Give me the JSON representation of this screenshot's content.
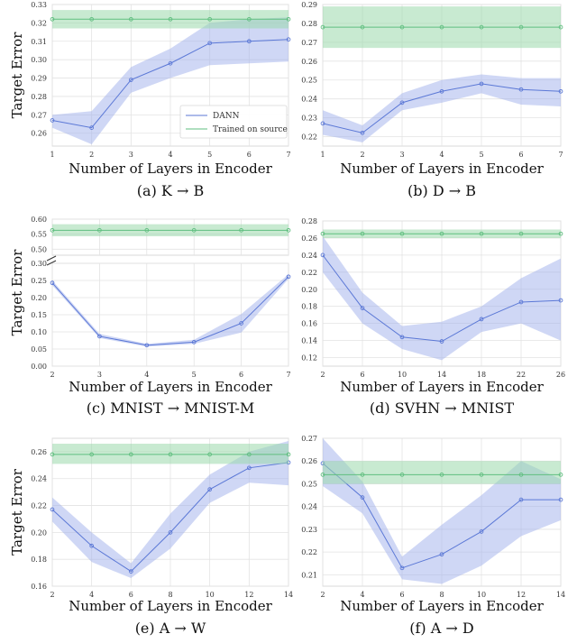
{
  "colors": {
    "dann": "#5b78d6",
    "dann_band": "#9fb0ec",
    "source": "#5fbf7f",
    "source_band": "#9bd8ac",
    "grid": "#e3e3e3",
    "frame": "#cfcfcf"
  },
  "chart_data": [
    {
      "type": "line",
      "caption": "(a) K → B",
      "xlabel": "Number of Layers in Encoder",
      "ylabel": "Target Error",
      "x": [
        1,
        2,
        3,
        4,
        5,
        6,
        7
      ],
      "xticks": [
        "1",
        "2",
        "3",
        "4",
        "5",
        "6",
        "7"
      ],
      "xlim": [
        1,
        7
      ],
      "ylim": [
        0.253,
        0.33
      ],
      "yticks": [
        0.26,
        0.27,
        0.28,
        0.29,
        0.3,
        0.31,
        0.32,
        0.33
      ],
      "yticklabels": [
        "0.26",
        "0.27",
        "0.28",
        "0.29",
        "0.30",
        "0.31",
        "0.32",
        "0.33"
      ],
      "grid": true,
      "legend": {
        "position": "lower-right",
        "entries": [
          "DANN",
          "Trained on source"
        ]
      },
      "series": [
        {
          "name": "DANN",
          "values": [
            0.267,
            0.263,
            0.289,
            0.298,
            0.309,
            0.31,
            0.311
          ],
          "lower": [
            0.263,
            0.254,
            0.282,
            0.29,
            0.297,
            0.298,
            0.299
          ],
          "upper": [
            0.27,
            0.272,
            0.296,
            0.306,
            0.32,
            0.322,
            0.323
          ]
        },
        {
          "name": "Trained on source",
          "values": [
            0.322,
            0.322,
            0.322,
            0.322,
            0.322,
            0.322,
            0.322
          ],
          "lower": [
            0.317,
            0.317,
            0.317,
            0.317,
            0.317,
            0.317,
            0.317
          ],
          "upper": [
            0.327,
            0.327,
            0.327,
            0.327,
            0.327,
            0.327,
            0.327
          ]
        }
      ]
    },
    {
      "type": "line",
      "caption": "(b) D → B",
      "xlabel": "Number of Layers in Encoder",
      "ylabel": "",
      "x": [
        1,
        2,
        3,
        4,
        5,
        6,
        7
      ],
      "xticks": [
        "1",
        "2",
        "3",
        "4",
        "5",
        "6",
        "7"
      ],
      "xlim": [
        1,
        7
      ],
      "ylim": [
        0.215,
        0.29
      ],
      "yticks": [
        0.22,
        0.23,
        0.24,
        0.25,
        0.26,
        0.27,
        0.28,
        0.29
      ],
      "yticklabels": [
        "0.22",
        "0.23",
        "0.24",
        "0.25",
        "0.26",
        "0.27",
        "0.28",
        "0.29"
      ],
      "grid": true,
      "series": [
        {
          "name": "DANN",
          "values": [
            0.227,
            0.222,
            0.238,
            0.244,
            0.248,
            0.245,
            0.244
          ],
          "lower": [
            0.221,
            0.217,
            0.234,
            0.238,
            0.243,
            0.237,
            0.236
          ],
          "upper": [
            0.234,
            0.226,
            0.243,
            0.25,
            0.253,
            0.251,
            0.251
          ]
        },
        {
          "name": "Trained on source",
          "values": [
            0.278,
            0.278,
            0.278,
            0.278,
            0.278,
            0.278,
            0.278
          ],
          "lower": [
            0.267,
            0.267,
            0.267,
            0.267,
            0.267,
            0.267,
            0.267
          ],
          "upper": [
            0.289,
            0.289,
            0.289,
            0.289,
            0.289,
            0.289,
            0.289
          ]
        }
      ]
    },
    {
      "type": "line",
      "caption": "(c) MNIST → MNIST-M",
      "xlabel": "Number of Layers in Encoder",
      "ylabel": "Target Error",
      "x": [
        2,
        3,
        4,
        5,
        6,
        7
      ],
      "xticks": [
        "2",
        "3",
        "4",
        "5",
        "6",
        "7"
      ],
      "xlim": [
        2,
        7
      ],
      "broken_axis": true,
      "top_segment": {
        "ylim": [
          0.48,
          0.6
        ],
        "yticks": [
          0.5,
          0.55,
          0.6
        ],
        "yticklabels": [
          "0.50",
          "0.55",
          "0.60"
        ]
      },
      "ylim": [
        0.0,
        0.3
      ],
      "yticks": [
        0.0,
        0.05,
        0.1,
        0.15,
        0.2,
        0.25,
        0.3
      ],
      "yticklabels": [
        "0.00",
        "0.05",
        "0.10",
        "0.15",
        "0.20",
        "0.25",
        "0.30"
      ],
      "grid": true,
      "series": [
        {
          "name": "DANN",
          "values": [
            0.243,
            0.087,
            0.061,
            0.07,
            0.125,
            0.261
          ],
          "lower": [
            0.236,
            0.082,
            0.057,
            0.065,
            0.098,
            0.255
          ],
          "upper": [
            0.25,
            0.094,
            0.065,
            0.077,
            0.152,
            0.268
          ]
        },
        {
          "name": "Trained on source",
          "values": [
            0.563,
            0.563,
            0.563,
            0.563,
            0.563,
            0.563
          ],
          "lower": [
            0.543,
            0.543,
            0.543,
            0.543,
            0.543,
            0.543
          ],
          "upper": [
            0.583,
            0.583,
            0.583,
            0.583,
            0.583,
            0.583
          ]
        }
      ]
    },
    {
      "type": "line",
      "caption": "(d) SVHN → MNIST",
      "xlabel": "Number of Layers in Encoder",
      "ylabel": "",
      "x": [
        2,
        6,
        10,
        14,
        18,
        22,
        26
      ],
      "xticks": [
        "2",
        "6",
        "10",
        "14",
        "18",
        "22",
        "26"
      ],
      "xlim": [
        2,
        26
      ],
      "ylim": [
        0.11,
        0.28
      ],
      "yticks": [
        0.12,
        0.14,
        0.16,
        0.18,
        0.2,
        0.22,
        0.24,
        0.26,
        0.28
      ],
      "yticklabels": [
        "0.12",
        "0.14",
        "0.16",
        "0.18",
        "0.20",
        "0.22",
        "0.24",
        "0.26",
        "0.28"
      ],
      "grid": true,
      "series": [
        {
          "name": "DANN",
          "values": [
            0.24,
            0.178,
            0.144,
            0.139,
            0.165,
            0.185,
            0.187
          ],
          "lower": [
            0.22,
            0.16,
            0.13,
            0.117,
            0.15,
            0.16,
            0.14
          ],
          "upper": [
            0.262,
            0.196,
            0.157,
            0.162,
            0.18,
            0.213,
            0.236
          ]
        },
        {
          "name": "Trained on source",
          "values": [
            0.265,
            0.265,
            0.265,
            0.265,
            0.265,
            0.265,
            0.265
          ],
          "lower": [
            0.26,
            0.26,
            0.26,
            0.26,
            0.26,
            0.26,
            0.26
          ],
          "upper": [
            0.27,
            0.27,
            0.27,
            0.27,
            0.27,
            0.27,
            0.27
          ]
        }
      ]
    },
    {
      "type": "line",
      "caption": "(e) A → W",
      "xlabel": "Number of Layers in Encoder",
      "ylabel": "Target Error",
      "x": [
        2,
        4,
        6,
        8,
        10,
        12,
        14
      ],
      "xticks": [
        "2",
        "4",
        "6",
        "8",
        "10",
        "12",
        "14"
      ],
      "xlim": [
        2,
        14
      ],
      "ylim": [
        0.16,
        0.27
      ],
      "yticks": [
        0.16,
        0.18,
        0.2,
        0.22,
        0.24,
        0.26
      ],
      "yticklabels": [
        "0.16",
        "0.18",
        "0.20",
        "0.22",
        "0.24",
        "0.26"
      ],
      "grid": true,
      "series": [
        {
          "name": "DANN",
          "values": [
            0.217,
            0.19,
            0.171,
            0.2,
            0.232,
            0.248,
            0.252
          ],
          "lower": [
            0.208,
            0.178,
            0.166,
            0.188,
            0.222,
            0.237,
            0.235
          ],
          "upper": [
            0.226,
            0.2,
            0.177,
            0.214,
            0.243,
            0.26,
            0.268
          ]
        },
        {
          "name": "Trained on source",
          "values": [
            0.258,
            0.258,
            0.258,
            0.258,
            0.258,
            0.258,
            0.258
          ],
          "lower": [
            0.251,
            0.251,
            0.251,
            0.251,
            0.251,
            0.251,
            0.251
          ],
          "upper": [
            0.266,
            0.266,
            0.266,
            0.266,
            0.266,
            0.266,
            0.266
          ]
        }
      ]
    },
    {
      "type": "line",
      "caption": "(f) A → D",
      "xlabel": "Number of Layers in Encoder",
      "ylabel": "",
      "x": [
        2,
        4,
        6,
        8,
        10,
        12,
        14
      ],
      "xticks": [
        "2",
        "4",
        "6",
        "8",
        "10",
        "12",
        "14"
      ],
      "xlim": [
        2,
        14
      ],
      "ylim": [
        0.205,
        0.27
      ],
      "yticks": [
        0.21,
        0.22,
        0.23,
        0.24,
        0.25,
        0.26,
        0.27
      ],
      "yticklabels": [
        "0.21",
        "0.22",
        "0.23",
        "0.24",
        "0.25",
        "0.26",
        "0.27"
      ],
      "grid": true,
      "series": [
        {
          "name": "DANN",
          "values": [
            0.259,
            0.244,
            0.213,
            0.219,
            0.229,
            0.243,
            0.243
          ],
          "lower": [
            0.249,
            0.237,
            0.208,
            0.206,
            0.214,
            0.227,
            0.234
          ],
          "upper": [
            0.27,
            0.251,
            0.218,
            0.232,
            0.245,
            0.26,
            0.252
          ]
        },
        {
          "name": "Trained on source",
          "values": [
            0.254,
            0.254,
            0.254,
            0.254,
            0.254,
            0.254,
            0.254
          ],
          "lower": [
            0.25,
            0.25,
            0.25,
            0.25,
            0.25,
            0.25,
            0.25
          ],
          "upper": [
            0.26,
            0.26,
            0.26,
            0.26,
            0.26,
            0.26,
            0.26
          ]
        }
      ]
    }
  ]
}
